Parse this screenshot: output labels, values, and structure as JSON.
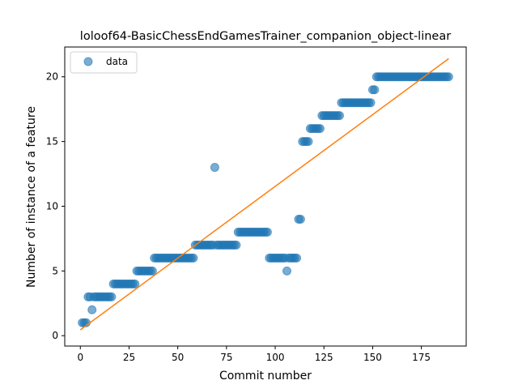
{
  "chart_data": {
    "type": "scatter",
    "title": "loloof64-BasicChessEndGamesTrainer_companion_object-linear",
    "xlabel": "Commit number",
    "ylabel": "Number of instance of a feature",
    "xlim": [
      -8,
      198
    ],
    "ylim": [
      -0.8,
      22.3
    ],
    "xticks": [
      0,
      25,
      50,
      75,
      100,
      125,
      150,
      175
    ],
    "yticks": [
      0,
      5,
      10,
      15,
      20
    ],
    "legend": {
      "position": "top-left",
      "entries": [
        "data"
      ]
    },
    "grid": false,
    "colors": {
      "scatter": "#1f77b4",
      "fit": "#ff7f0e"
    },
    "series": [
      {
        "name": "data",
        "kind": "scatter",
        "segments": [
          {
            "x_start": 1,
            "x_end": 3,
            "y": 1
          },
          {
            "x_start": 4,
            "x_end": 5,
            "y": 3
          },
          {
            "x_start": 6,
            "x_end": 6,
            "y": 2
          },
          {
            "x_start": 7,
            "x_end": 16,
            "y": 3
          },
          {
            "x_start": 17,
            "x_end": 28,
            "y": 4
          },
          {
            "x_start": 29,
            "x_end": 37,
            "y": 5
          },
          {
            "x_start": 38,
            "x_end": 58,
            "y": 6
          },
          {
            "x_start": 59,
            "x_end": 68,
            "y": 7
          },
          {
            "x_start": 69,
            "x_end": 69,
            "y": 13
          },
          {
            "x_start": 70,
            "x_end": 80,
            "y": 7
          },
          {
            "x_start": 81,
            "x_end": 96,
            "y": 8
          },
          {
            "x_start": 97,
            "x_end": 105,
            "y": 6
          },
          {
            "x_start": 106,
            "x_end": 106,
            "y": 5
          },
          {
            "x_start": 107,
            "x_end": 111,
            "y": 6
          },
          {
            "x_start": 112,
            "x_end": 113,
            "y": 9
          },
          {
            "x_start": 114,
            "x_end": 117,
            "y": 15
          },
          {
            "x_start": 118,
            "x_end": 123,
            "y": 16
          },
          {
            "x_start": 124,
            "x_end": 133,
            "y": 17
          },
          {
            "x_start": 134,
            "x_end": 149,
            "y": 18
          },
          {
            "x_start": 150,
            "x_end": 151,
            "y": 19
          },
          {
            "x_start": 152,
            "x_end": 189,
            "y": 20
          }
        ]
      },
      {
        "name": "",
        "kind": "line",
        "x": [
          0,
          189
        ],
        "y": [
          0.45,
          21.4
        ]
      }
    ]
  }
}
